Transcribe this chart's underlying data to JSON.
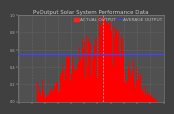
{
  "title": "PvOutput Solar System Performance Data",
  "legend_actual": "ACTUAL OUTPUT",
  "legend_average": "AVERAGE OUTPUT",
  "bg_color": "#404040",
  "plot_bg_color": "#505050",
  "bar_color": "#ff0000",
  "avg_line_color": "#4444ff",
  "grid_color": "#888888",
  "num_bars": 200,
  "avg_line_y": 0.55,
  "ylim": [
    0,
    1.0
  ],
  "title_fontsize": 4.0,
  "legend_fontsize": 3.2,
  "tick_fontsize": 2.5,
  "dpi": 100,
  "title_color": "#cccccc",
  "tick_color": "#bbbbbb",
  "legend_actual_color": "#ff2222",
  "legend_avg_color": "#4444ff"
}
